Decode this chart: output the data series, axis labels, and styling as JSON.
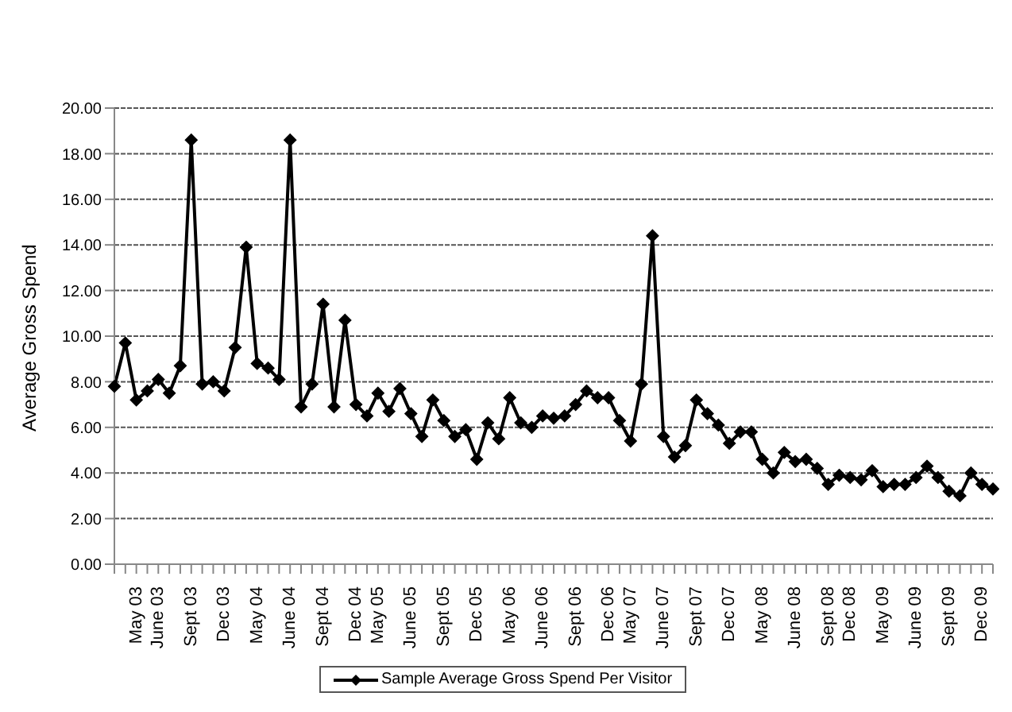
{
  "chart_data": {
    "type": "line",
    "ylabel": "Average Gross Spend",
    "categories": [
      null,
      null,
      "May 03",
      null,
      "June 03",
      null,
      null,
      "Sept 03",
      null,
      null,
      "Dec 03",
      null,
      null,
      "May 04",
      null,
      null,
      "June 04",
      null,
      null,
      "Sept 04",
      null,
      null,
      "Dec 04",
      null,
      "May 05",
      null,
      null,
      "June 05",
      null,
      null,
      "Sept 05",
      null,
      null,
      "Dec 05",
      null,
      null,
      "May 06",
      null,
      null,
      "June 06",
      null,
      null,
      "Sept 06",
      null,
      null,
      "Dec 06",
      null,
      "May 07",
      null,
      null,
      "June 07",
      null,
      null,
      "Sept 07",
      null,
      null,
      "Dec 07",
      null,
      null,
      "May 08",
      null,
      null,
      "June 08",
      null,
      null,
      "Sept 08",
      null,
      "Dec 08",
      null,
      null,
      "May 09",
      null,
      null,
      "June 09",
      null,
      null,
      "Sept 09",
      null,
      null,
      "Dec 09",
      null
    ],
    "series": [
      {
        "name": "Sample Average Gross Spend Per Visitor",
        "color": "#000000",
        "values": [
          7.8,
          9.7,
          7.2,
          7.6,
          8.1,
          7.5,
          8.7,
          18.6,
          7.9,
          8.0,
          7.6,
          9.5,
          13.9,
          8.8,
          8.6,
          8.1,
          18.6,
          6.9,
          7.9,
          11.4,
          6.9,
          10.7,
          7.0,
          6.5,
          7.5,
          6.7,
          7.7,
          6.6,
          5.6,
          7.2,
          6.3,
          5.6,
          5.9,
          4.6,
          6.2,
          5.5,
          7.3,
          6.2,
          6.0,
          6.5,
          6.4,
          6.5,
          7.0,
          7.6,
          7.3,
          7.3,
          6.3,
          5.4,
          7.9,
          14.4,
          5.6,
          4.7,
          5.2,
          7.2,
          6.6,
          6.1,
          5.3,
          5.8,
          5.8,
          4.6,
          4.0,
          4.9,
          4.5,
          4.6,
          4.2,
          3.5,
          3.9,
          3.8,
          3.7,
          4.1,
          3.4,
          3.5,
          3.5,
          3.8,
          4.3,
          3.8,
          3.2,
          3.0,
          4.0,
          3.5,
          3.3
        ]
      }
    ],
    "ylim": [
      0,
      20
    ],
    "yticks": [
      {
        "value": 0,
        "label": "0.00"
      },
      {
        "value": 2,
        "label": "2.00"
      },
      {
        "value": 4,
        "label": "4.00"
      },
      {
        "value": 6,
        "label": "6.00"
      },
      {
        "value": 8,
        "label": "8.00"
      },
      {
        "value": 10,
        "label": "10.00"
      },
      {
        "value": 12,
        "label": "12.00"
      },
      {
        "value": 14,
        "label": "14.00"
      },
      {
        "value": 16,
        "label": "16.00"
      },
      {
        "value": 18,
        "label": "18.00"
      },
      {
        "value": 20,
        "label": "20.00"
      }
    ],
    "grid": "y",
    "legend": "bottom",
    "marker": "diamond",
    "line_style": "solid"
  }
}
